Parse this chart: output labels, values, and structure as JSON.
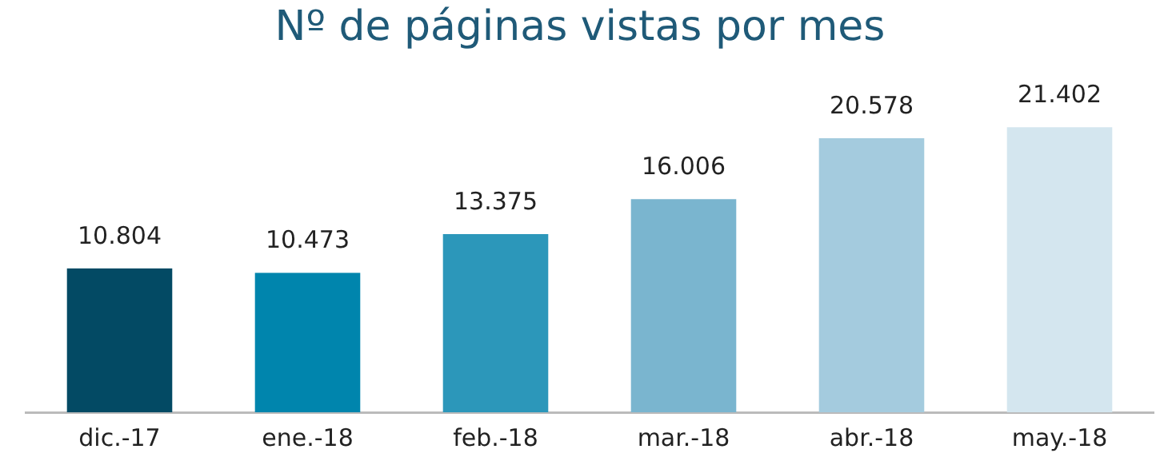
{
  "chart_data": {
    "type": "bar",
    "title": "Nº de páginas vistas por mes",
    "categories": [
      "dic.-17",
      "ene.-18",
      "feb.-18",
      "mar.-18",
      "abr.-18",
      "may.-18"
    ],
    "values": [
      10804,
      10473,
      13375,
      16006,
      20578,
      21402
    ],
    "value_labels": [
      "10.804",
      "10.473",
      "13.375",
      "16.006",
      "20.578",
      "21.402"
    ],
    "colors": [
      "#034a64",
      "#0085ad",
      "#2c97ba",
      "#7ab5cf",
      "#a4cbde",
      "#d4e6ef"
    ],
    "grid": false,
    "legend": false
  }
}
